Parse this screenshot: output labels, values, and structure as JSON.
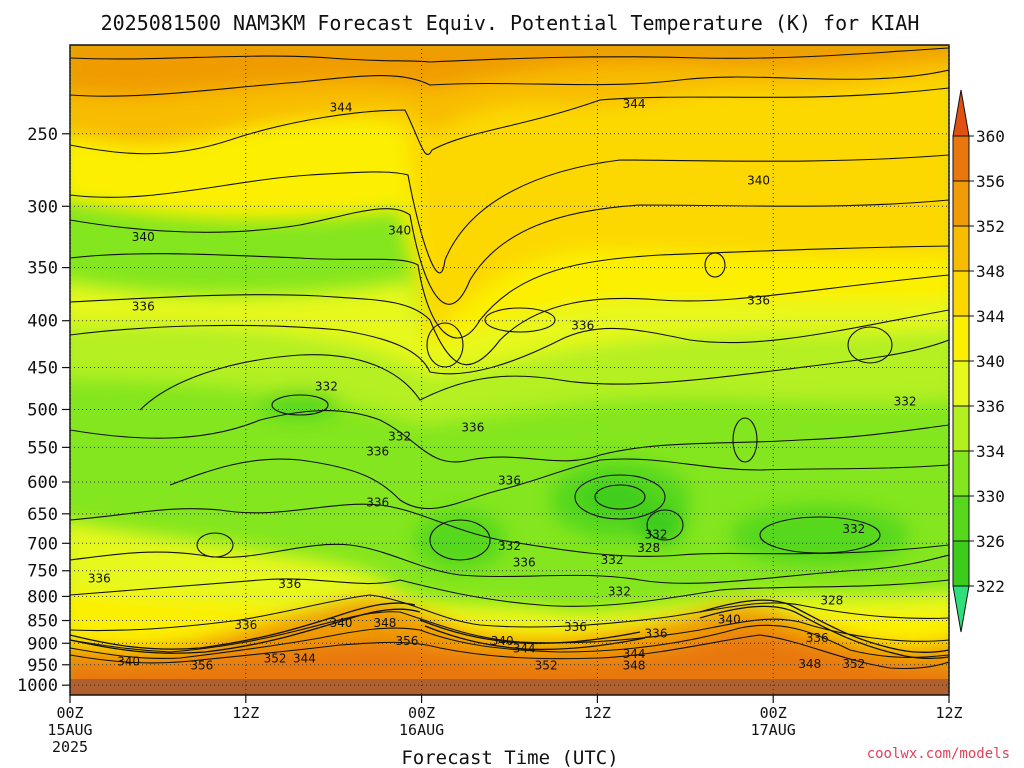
{
  "chart_data": {
    "type": "contour",
    "title": "2025081500 NAM3KM Forecast Equiv. Potential Temperature (K) for KIAH",
    "xlabel": "Forecast Time (UTC)",
    "ylabel": "",
    "credit": "coolwx.com/models",
    "x_ticks": [
      {
        "hour": 0,
        "line1": "00Z",
        "line2": "15AUG",
        "line3": "2025"
      },
      {
        "hour": 12,
        "line1": "12Z",
        "line2": "",
        "line3": ""
      },
      {
        "hour": 24,
        "line1": "00Z",
        "line2": "16AUG",
        "line3": ""
      },
      {
        "hour": 36,
        "line1": "12Z",
        "line2": "",
        "line3": ""
      },
      {
        "hour": 48,
        "line1": "00Z",
        "line2": "17AUG",
        "line3": ""
      },
      {
        "hour": 60,
        "line1": "12Z",
        "line2": "",
        "line3": ""
      }
    ],
    "xlim": [
      0,
      60
    ],
    "y_ticks": [
      250,
      300,
      350,
      400,
      450,
      500,
      550,
      600,
      650,
      700,
      750,
      800,
      850,
      900,
      950,
      1000
    ],
    "ylim": [
      200,
      1025
    ],
    "y_scale": "log-pressure",
    "grid": true,
    "colorbar": {
      "levels": [
        322,
        326,
        330,
        334,
        336,
        340,
        344,
        348,
        352,
        356,
        360
      ],
      "tick_labels": [
        "322",
        "326",
        "330",
        "334",
        "336",
        "340",
        "344",
        "348",
        "352",
        "356",
        "360"
      ],
      "colors": [
        "#2ee07a",
        "#3ccc1c",
        "#56d81c",
        "#84e61e",
        "#b4f020",
        "#e6f81e",
        "#fcf000",
        "#fcd800",
        "#f8bc00",
        "#f09c06",
        "#e8780e",
        "#e05010"
      ],
      "placement": "right"
    },
    "contour_labels": [
      {
        "hour": 18.5,
        "p": 234,
        "text": "344"
      },
      {
        "hour": 38.5,
        "p": 232,
        "text": "344"
      },
      {
        "hour": 47,
        "p": 281,
        "text": "340"
      },
      {
        "hour": 5,
        "p": 324,
        "text": "340"
      },
      {
        "hour": 22.5,
        "p": 319,
        "text": "340"
      },
      {
        "hour": 5,
        "p": 386,
        "text": "336"
      },
      {
        "hour": 47,
        "p": 380,
        "text": "336"
      },
      {
        "hour": 35,
        "p": 405,
        "text": "336"
      },
      {
        "hour": 17.5,
        "p": 472,
        "text": "332"
      },
      {
        "hour": 57,
        "p": 490,
        "text": "332"
      },
      {
        "hour": 22.5,
        "p": 535,
        "text": "332"
      },
      {
        "hour": 27.5,
        "p": 523,
        "text": "336"
      },
      {
        "hour": 21,
        "p": 556,
        "text": "336"
      },
      {
        "hour": 30,
        "p": 598,
        "text": "336"
      },
      {
        "hour": 21,
        "p": 632,
        "text": "336"
      },
      {
        "hour": 53.5,
        "p": 675,
        "text": "332"
      },
      {
        "hour": 40,
        "p": 685,
        "text": "332"
      },
      {
        "hour": 30,
        "p": 705,
        "text": "332"
      },
      {
        "hour": 39.5,
        "p": 708,
        "text": "328"
      },
      {
        "hour": 37,
        "p": 730,
        "text": "332"
      },
      {
        "hour": 31,
        "p": 735,
        "text": "336"
      },
      {
        "hour": 2,
        "p": 765,
        "text": "336"
      },
      {
        "hour": 15,
        "p": 775,
        "text": "336"
      },
      {
        "hour": 37.5,
        "p": 790,
        "text": "332"
      },
      {
        "hour": 52,
        "p": 808,
        "text": "328"
      },
      {
        "hour": 12,
        "p": 860,
        "text": "336"
      },
      {
        "hour": 18.5,
        "p": 855,
        "text": "340"
      },
      {
        "hour": 21.5,
        "p": 855,
        "text": "348"
      },
      {
        "hour": 34.5,
        "p": 864,
        "text": "336"
      },
      {
        "hour": 45,
        "p": 848,
        "text": "340"
      },
      {
        "hour": 40,
        "p": 878,
        "text": "336"
      },
      {
        "hour": 51,
        "p": 888,
        "text": "336"
      },
      {
        "hour": 23,
        "p": 895,
        "text": "356"
      },
      {
        "hour": 29.5,
        "p": 895,
        "text": "340"
      },
      {
        "hour": 31,
        "p": 912,
        "text": "344"
      },
      {
        "hour": 38.5,
        "p": 925,
        "text": "344"
      },
      {
        "hour": 14,
        "p": 935,
        "text": "352"
      },
      {
        "hour": 16,
        "p": 935,
        "text": "344"
      },
      {
        "hour": 4,
        "p": 942,
        "text": "340"
      },
      {
        "hour": 9,
        "p": 952,
        "text": "356"
      },
      {
        "hour": 32.5,
        "p": 952,
        "text": "352"
      },
      {
        "hour": 38.5,
        "p": 952,
        "text": "348"
      },
      {
        "hour": 50.5,
        "p": 948,
        "text": "348"
      },
      {
        "hour": 53.5,
        "p": 948,
        "text": "352"
      }
    ]
  }
}
